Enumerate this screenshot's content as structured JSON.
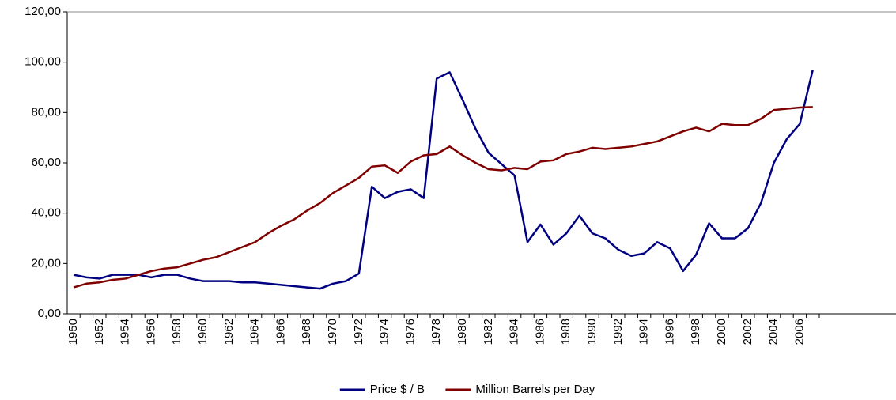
{
  "chart_data": {
    "type": "line",
    "categories": [
      "1950",
      null,
      "1952",
      null,
      "1954",
      null,
      "1956",
      null,
      "1958",
      null,
      "1960",
      null,
      "1962",
      null,
      "1964",
      null,
      "1966",
      null,
      "1968",
      null,
      "1970",
      null,
      "1972",
      null,
      "1974",
      null,
      "1976",
      null,
      "1978",
      null,
      "1980",
      null,
      "1982",
      null,
      "1984",
      null,
      "1986",
      null,
      "1988",
      null,
      "1990",
      null,
      "1992",
      null,
      "1994",
      null,
      "1996",
      null,
      "1998",
      null,
      "2000",
      null,
      "2002",
      null,
      "2004",
      null,
      "2006",
      null
    ],
    "series": [
      {
        "name": "Price $ / B",
        "color": "#000080",
        "values": [
          15.5,
          14.5,
          14,
          15.5,
          15.5,
          15.5,
          14.5,
          15.5,
          15.5,
          14,
          13,
          13,
          13,
          12.5,
          12.5,
          12,
          11.5,
          11,
          10.5,
          10,
          12,
          13,
          16,
          50.5,
          46,
          48.5,
          49.5,
          46,
          93.5,
          96,
          85,
          73.5,
          64,
          59.5,
          55,
          28.5,
          35.5,
          27.5,
          32,
          39,
          32,
          30,
          25.5,
          23,
          24,
          28.5,
          26,
          17,
          23.5,
          36,
          30,
          30,
          34,
          44,
          60,
          69.5,
          75.5,
          97
        ]
      },
      {
        "name": "Million Barrels per Day",
        "color": "#800000",
        "values": [
          10.5,
          12,
          12.5,
          13.5,
          14,
          15.5,
          17,
          18,
          18.5,
          20,
          21.5,
          22.5,
          24.5,
          26.5,
          28.5,
          32,
          35,
          37.5,
          41,
          44,
          48,
          51,
          54,
          58.5,
          59,
          56,
          60.5,
          63,
          63.5,
          66.5,
          63,
          60,
          57.5,
          57,
          58,
          57.5,
          60.5,
          61,
          63.5,
          64.5,
          66,
          65.5,
          66,
          66.5,
          67.5,
          68.5,
          70.5,
          72.5,
          74,
          72.5,
          75.5,
          75,
          75,
          77.5,
          81,
          81.5,
          82,
          82.2
        ]
      }
    ],
    "ylim": [
      0,
      120
    ],
    "yticks": [
      {
        "value": 0,
        "label": "0,00"
      },
      {
        "value": 20,
        "label": "20,00"
      },
      {
        "value": 40,
        "label": "40,00"
      },
      {
        "value": 60,
        "label": "60,00"
      },
      {
        "value": 80,
        "label": "80,00"
      },
      {
        "value": 100,
        "label": "100,00"
      },
      {
        "value": 120,
        "label": "120,00"
      }
    ],
    "legend": "bottom"
  }
}
